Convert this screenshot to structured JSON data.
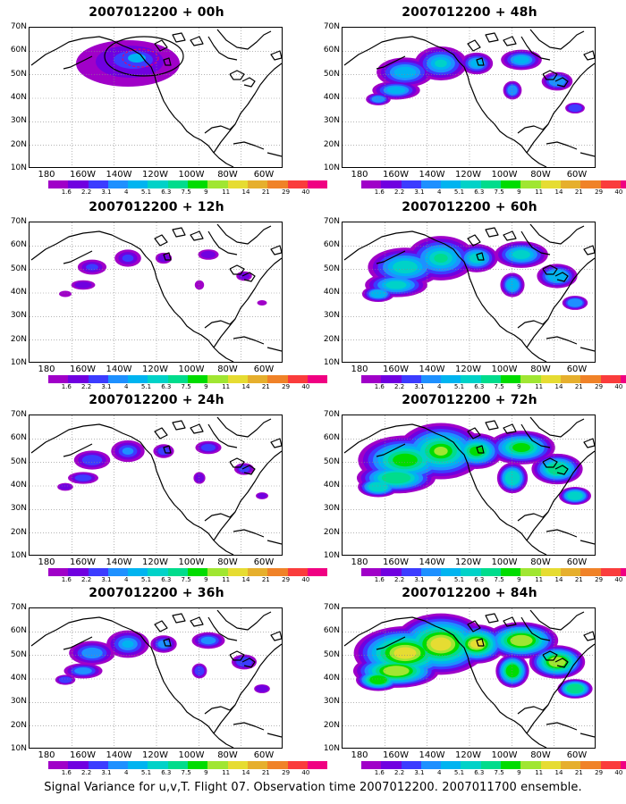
{
  "panels": [
    {
      "title": "2007012200 + 00h",
      "intensity": 0
    },
    {
      "title": "2007012200 + 48h",
      "intensity": 3
    },
    {
      "title": "2007012200 + 12h",
      "intensity": 1
    },
    {
      "title": "2007012200 + 60h",
      "intensity": 4
    },
    {
      "title": "2007012200 + 24h",
      "intensity": 1.6
    },
    {
      "title": "2007012200 + 72h",
      "intensity": 5
    },
    {
      "title": "2007012200 + 36h",
      "intensity": 2.3
    },
    {
      "title": "2007012200 + 84h",
      "intensity": 6
    }
  ],
  "lat_labels": [
    "70N",
    "60N",
    "50N",
    "40N",
    "30N",
    "20N",
    "10N"
  ],
  "lon_labels": [
    "180",
    "160W",
    "140W",
    "120W",
    "100W",
    "80W",
    "60W"
  ],
  "colorbar": {
    "labels": [
      "1.6",
      "2.2",
      "3.1",
      "4",
      "5.1",
      "6.3",
      "7.5",
      "9",
      "11",
      "14",
      "21",
      "29",
      "40"
    ],
    "colors": [
      "#a000c8",
      "#7000e0",
      "#3c3cff",
      "#1e90ff",
      "#00b4f0",
      "#00d2c8",
      "#00dc8c",
      "#00dc00",
      "#a0e632",
      "#e6dc32",
      "#e6af2d",
      "#f08228",
      "#fa3c3c",
      "#f00082"
    ]
  },
  "caption": "Signal Variance for u,v,T. Flight 07. Observation time 2007012200. 2007011700 ensemble."
}
